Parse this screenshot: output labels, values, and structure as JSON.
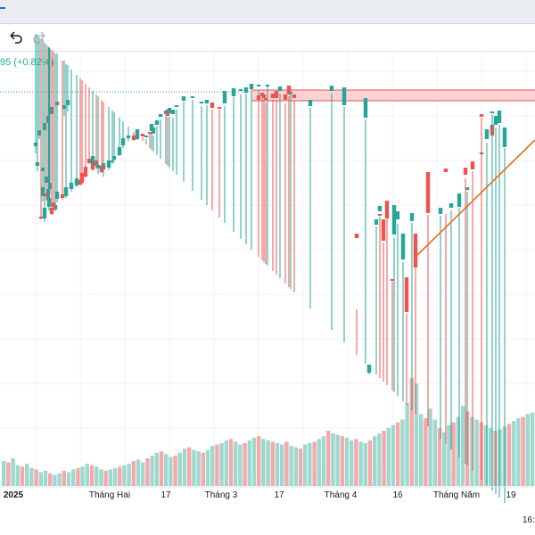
{
  "header": {
    "quote_change": "95 (+0.82%)",
    "undo_icon": "undo-icon",
    "redo_icon": "redo-icon"
  },
  "time_axis": {
    "labels": [
      "2025",
      "Tháng Hai",
      "17",
      "Tháng 3",
      "17",
      "Tháng 4",
      "16",
      "Tháng Năm",
      "19"
    ],
    "corner_label": "16:"
  },
  "colors": {
    "up": "#26a69a",
    "down": "#ef5350",
    "volume_up": "#9fd8cd",
    "volume_down": "#f7a8ab",
    "trendline": "#e36e1f",
    "resistance_fill": "#fbd3d3",
    "resistance_border": "#e85656",
    "dotted_line": "#22ab94"
  },
  "chart_data": {
    "type": "candlestick",
    "candles": [
      [
        76,
        118,
        112,
        125,
        73
      ],
      [
        72,
        122,
        118,
        130,
        68
      ],
      [
        64,
        114,
        118,
        128,
        60
      ],
      [
        58,
        128,
        120,
        132,
        56
      ],
      [
        54,
        138,
        130,
        142,
        52
      ],
      [
        50,
        146,
        138,
        150,
        48
      ],
      [
        44,
        152,
        146,
        156,
        42
      ],
      [
        40,
        164,
        160,
        172,
        38
      ],
      [
        42,
        186,
        182,
        192,
        40
      ],
      [
        48,
        192,
        188,
        198,
        44
      ],
      [
        52,
        205,
        198,
        212,
        50
      ],
      [
        56,
        212,
        205,
        218,
        54
      ],
      [
        54,
        224,
        212,
        226,
        54
      ],
      [
        48,
        220,
        210,
        226,
        44
      ],
      [
        52,
        217,
        220,
        225,
        51
      ],
      [
        55,
        232,
        222,
        236,
        53
      ],
      [
        50,
        245,
        233,
        249,
        48
      ],
      [
        46,
        243,
        244,
        246,
        44
      ],
      [
        58,
        233,
        240,
        241,
        56
      ],
      [
        62,
        235,
        230,
        237,
        60
      ],
      [
        60,
        227,
        232,
        236,
        58
      ],
      [
        64,
        223,
        215,
        227,
        62
      ],
      [
        70,
        218,
        222,
        224,
        68
      ],
      [
        74,
        210,
        220,
        222,
        72
      ],
      [
        74,
        220,
        210,
        222,
        72
      ],
      [
        80,
        212,
        205,
        215,
        78
      ],
      [
        86,
        208,
        200,
        210,
        84
      ],
      [
        90,
        202,
        207,
        208,
        88
      ],
      [
        92,
        194,
        205,
        207,
        90
      ],
      [
        96,
        187,
        198,
        199,
        94
      ],
      [
        104,
        184,
        190,
        192,
        102
      ],
      [
        110,
        188,
        187,
        195,
        108
      ],
      [
        114,
        186,
        193,
        194,
        112
      ],
      [
        116,
        190,
        183,
        198,
        114
      ],
      [
        108,
        180,
        186,
        188,
        106
      ],
      [
        100,
        178,
        183,
        184,
        98
      ],
      [
        104,
        184,
        175,
        186,
        102
      ],
      [
        110,
        187,
        185,
        189,
        108
      ],
      [
        116,
        188,
        189,
        190,
        114
      ],
      [
        122,
        188,
        180,
        191,
        120
      ],
      [
        126,
        182,
        180,
        184,
        124
      ],
      [
        128,
        179,
        175,
        180,
        126
      ],
      [
        134,
        174,
        165,
        175,
        132
      ],
      [
        138,
        163,
        155,
        166,
        136
      ],
      [
        144,
        155,
        152,
        158,
        142
      ],
      [
        150,
        152,
        157,
        158,
        148
      ],
      [
        154,
        156,
        145,
        157,
        152
      ],
      [
        160,
        150,
        153,
        154,
        158
      ],
      [
        164,
        154,
        152,
        156,
        162
      ],
      [
        168,
        148,
        148,
        150,
        166
      ],
      [
        172,
        150,
        143,
        152,
        170
      ],
      [
        170,
        147,
        139,
        150,
        168
      ],
      [
        176,
        140,
        135,
        142,
        174
      ],
      [
        180,
        131,
        128,
        134,
        178
      ],
      [
        186,
        128,
        124,
        130,
        184
      ],
      [
        188,
        123,
        130,
        131,
        186
      ],
      [
        190,
        127,
        121,
        131,
        188
      ],
      [
        194,
        128,
        123,
        132,
        192
      ],
      [
        198,
        120,
        118,
        123,
        196
      ],
      [
        206,
        113,
        108,
        114,
        204
      ],
      [
        216,
        110,
        108,
        112,
        214
      ],
      [
        226,
        116,
        114,
        119,
        224
      ],
      [
        232,
        116,
        112,
        118,
        230
      ],
      [
        238,
        115,
        121,
        123,
        236
      ],
      [
        246,
        120,
        120,
        123,
        244
      ],
      [
        252,
        116,
        102,
        119,
        250
      ],
      [
        262,
        108,
        99,
        109,
        260
      ],
      [
        270,
        102,
        100,
        106,
        268
      ],
      [
        276,
        104,
        98,
        105,
        274
      ],
      [
        282,
        100,
        94,
        103,
        280
      ],
      [
        290,
        97,
        95,
        101,
        288
      ],
      [
        300,
        96,
        95,
        97,
        298
      ],
      [
        314,
        102,
        97,
        105,
        312
      ],
      [
        324,
        96,
        106,
        108,
        322
      ],
      [
        330,
        106,
        110,
        113,
        328
      ],
      [
        320,
        106,
        112,
        116,
        318
      ],
      [
        306,
        105,
        110,
        112,
        304
      ],
      [
        296,
        106,
        110,
        112,
        294
      ],
      [
        290,
        107,
        112,
        115,
        288
      ],
      [
        294,
        104,
        108,
        110,
        292
      ],
      [
        298,
        110,
        112,
        115,
        296
      ],
      [
        310,
        102,
        110,
        112,
        308
      ],
      [
        326,
        104,
        103,
        105,
        324
      ],
      [
        348,
        119,
        112,
        121,
        346
      ],
      [
        372,
        102,
        96,
        105,
        370
      ],
      [
        386,
        118,
        98,
        120,
        384
      ],
      [
        410,
        132,
        110,
        134,
        408
      ],
      [
        500,
        189,
        193,
        240,
        498
      ],
      [
        480,
        193,
        239,
        241,
        478
      ],
      [
        466,
        262,
        300,
        300,
        464
      ],
      [
        456,
        311,
        350,
        352,
        454
      ],
      [
        414,
        418,
        409,
        420,
        412
      ],
      [
        440,
        313,
        313,
        316,
        438
      ],
      [
        452,
        291,
        262,
        294,
        450
      ],
      [
        442,
        263,
        230,
        267,
        440
      ],
      [
        434,
        225,
        245,
        245,
        432
      ],
      [
        426,
        237,
        231,
        243,
        424
      ],
      [
        446,
        246,
        237,
        251,
        444
      ],
      [
        400,
        262,
        267,
        347,
        398
      ],
      [
        430,
        246,
        270,
        272,
        428
      ],
      [
        422,
        252,
        246,
        254,
        420
      ],
      [
        426,
        240,
        242,
        248,
        424
      ],
      [
        462,
        248,
        239,
        250,
        460
      ],
      [
        494,
        240,
        233,
        242,
        492
      ],
      [
        506,
        233,
        228,
        236,
        504
      ],
      [
        515,
        232,
        217,
        233,
        513
      ],
      [
        524,
        213,
        210,
        215,
        522
      ],
      [
        522,
        188,
        196,
        200,
        520
      ],
      [
        530,
        181,
        190,
        192,
        528
      ],
      [
        540,
        172,
        171,
        177,
        538
      ],
      [
        546,
        156,
        145,
        160,
        544
      ],
      [
        552,
        143,
        140,
        145,
        550
      ],
      [
        560,
        138,
        124,
        140,
        558
      ],
      [
        552,
        141,
        152,
        153,
        550
      ],
      [
        566,
        165,
        143,
        166,
        564
      ],
      [
        556,
        140,
        130,
        143,
        554
      ],
      [
        552,
        126,
        125,
        128,
        550
      ],
      [
        540,
        128,
        131,
        132,
        538
      ]
    ],
    "candle_format": "[volume_index,open,close,high,low] raw readings; prices unlabeled on axis",
    "volume": [
      18,
      17,
      20,
      15,
      14,
      16,
      13,
      12,
      10,
      11,
      9,
      8,
      9,
      11,
      10,
      12,
      13,
      14,
      16,
      15,
      14,
      12,
      11,
      12,
      13,
      14,
      15,
      16,
      18,
      19,
      17,
      20,
      22,
      24,
      25,
      23,
      21,
      22,
      24,
      27,
      28,
      26,
      25,
      24,
      26,
      29,
      30,
      31,
      33,
      34,
      32,
      30,
      31,
      33,
      35,
      36,
      34,
      33,
      32,
      31,
      30,
      32,
      29,
      28,
      27,
      30,
      31,
      32,
      34,
      36,
      40,
      38,
      37,
      36,
      35,
      33,
      34,
      32,
      31,
      33,
      36,
      38,
      40,
      42,
      44,
      46,
      48,
      60,
      78,
      74,
      52,
      49,
      56,
      48,
      42,
      39,
      44,
      46,
      50,
      58,
      54,
      50,
      48,
      46,
      44,
      42,
      40,
      41,
      43,
      45,
      47,
      49,
      50,
      52,
      53,
      51,
      50
    ],
    "vol_colors": "alternating per candle direction",
    "resistance_zone": {
      "y_top": 101,
      "y_bottom": 113
    },
    "trendline": {
      "from": [
        465,
        289
      ],
      "to": [
        600,
        157
      ]
    },
    "dotted_level_y": 103,
    "grid": true
  }
}
